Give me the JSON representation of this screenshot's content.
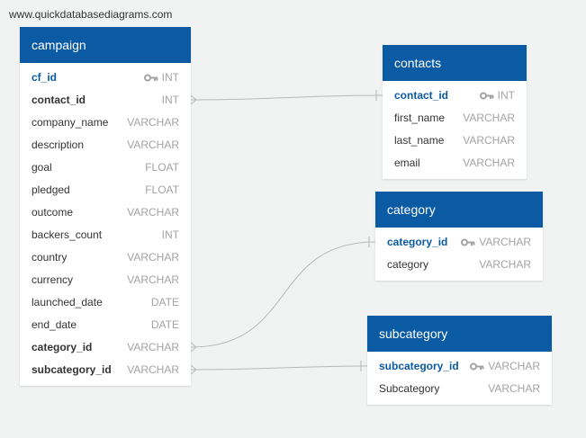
{
  "watermark": "www.quickdatabasediagrams.com",
  "colors": {
    "header_bg": "#0a5aa4",
    "pk_text": "#0a5aa4",
    "type_text": "#a3a3a3",
    "connector": "#b8b8b8",
    "background": "#f1f3f3"
  },
  "tables": {
    "campaign": {
      "title": "campaign",
      "columns": [
        {
          "name": "cf_id",
          "type": "INT",
          "key": "pk"
        },
        {
          "name": "contact_id",
          "type": "INT",
          "key": "fk"
        },
        {
          "name": "company_name",
          "type": "VARCHAR"
        },
        {
          "name": "description",
          "type": "VARCHAR"
        },
        {
          "name": "goal",
          "type": "FLOAT"
        },
        {
          "name": "pledged",
          "type": "FLOAT"
        },
        {
          "name": "outcome",
          "type": "VARCHAR"
        },
        {
          "name": "backers_count",
          "type": "INT"
        },
        {
          "name": "country",
          "type": "VARCHAR"
        },
        {
          "name": "currency",
          "type": "VARCHAR"
        },
        {
          "name": "launched_date",
          "type": "DATE"
        },
        {
          "name": "end_date",
          "type": "DATE"
        },
        {
          "name": "category_id",
          "type": "VARCHAR",
          "key": "fk"
        },
        {
          "name": "subcategory_id",
          "type": "VARCHAR",
          "key": "fk"
        }
      ]
    },
    "contacts": {
      "title": "contacts",
      "columns": [
        {
          "name": "contact_id",
          "type": "INT",
          "key": "pk"
        },
        {
          "name": "first_name",
          "type": "VARCHAR"
        },
        {
          "name": "last_name",
          "type": "VARCHAR"
        },
        {
          "name": "email",
          "type": "VARCHAR"
        }
      ]
    },
    "category": {
      "title": "category",
      "columns": [
        {
          "name": "category_id",
          "type": "VARCHAR",
          "key": "pk"
        },
        {
          "name": "category",
          "type": "VARCHAR"
        }
      ]
    },
    "subcategory": {
      "title": "subcategory",
      "columns": [
        {
          "name": "subcategory_id",
          "type": "VARCHAR",
          "key": "pk"
        },
        {
          "name": "Subcategory",
          "type": "VARCHAR"
        }
      ]
    }
  },
  "relationships": [
    {
      "from": "campaign.contact_id",
      "to": "contacts.contact_id"
    },
    {
      "from": "campaign.category_id",
      "to": "category.category_id"
    },
    {
      "from": "campaign.subcategory_id",
      "to": "subcategory.subcategory_id"
    }
  ]
}
